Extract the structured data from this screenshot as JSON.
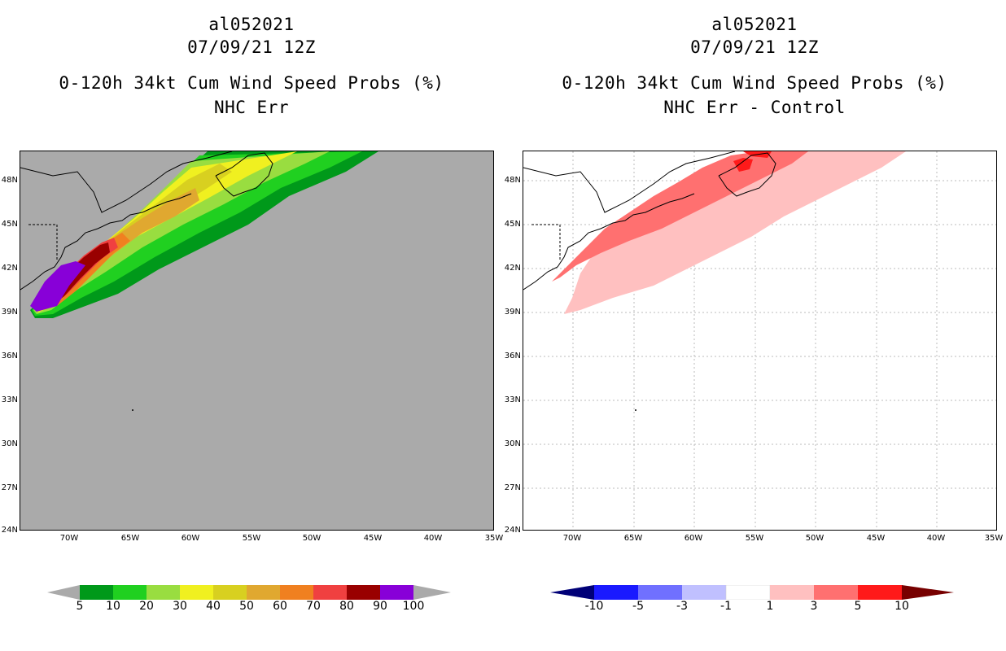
{
  "left": {
    "title_line1": "al052021",
    "title_line2": "07/09/21 12Z",
    "title_line3": "0-120h 34kt Cum Wind Speed Probs (%)",
    "title_line4": "NHC Err",
    "background_color": "#aaaaaa",
    "colorbar": {
      "labels": [
        "5",
        "10",
        "20",
        "30",
        "40",
        "50",
        "60",
        "70",
        "80",
        "90",
        "100"
      ],
      "colors": [
        "#00991a",
        "#20d020",
        "#99dd40",
        "#f0f020",
        "#d8d020",
        "#e0a830",
        "#f08020",
        "#f04040",
        "#990000",
        "#8800d8"
      ],
      "extend_colors": [
        "#aaaaaa",
        "#aaaaaa"
      ]
    }
  },
  "right": {
    "title_line1": "al052021",
    "title_line2": "07/09/21 12Z",
    "title_line3": "0-120h 34kt Cum Wind Speed Probs (%)",
    "title_line4": "NHC Err - Control",
    "background_color": "#ffffff",
    "colorbar": {
      "labels": [
        "-10",
        "-5",
        "-3",
        "-1",
        "1",
        "3",
        "5",
        "10"
      ],
      "colors": [
        "#0000aa",
        "#1a1aff",
        "#7070ff",
        "#c0c0ff",
        "#ffffff",
        "#ffc0c0",
        "#ff7070",
        "#ff1a1a"
      ],
      "extend_colors": [
        "#000077",
        "#770000"
      ]
    }
  },
  "axes": {
    "lat_labels": [
      "48N",
      "45N",
      "42N",
      "39N",
      "36N",
      "33N",
      "30N",
      "27N",
      "24N"
    ],
    "lon_labels": [
      "70W",
      "65W",
      "60W",
      "55W",
      "50W",
      "45W",
      "40W",
      "35W"
    ],
    "lat_range": [
      24,
      50
    ],
    "lon_range": [
      -74,
      -35
    ]
  }
}
